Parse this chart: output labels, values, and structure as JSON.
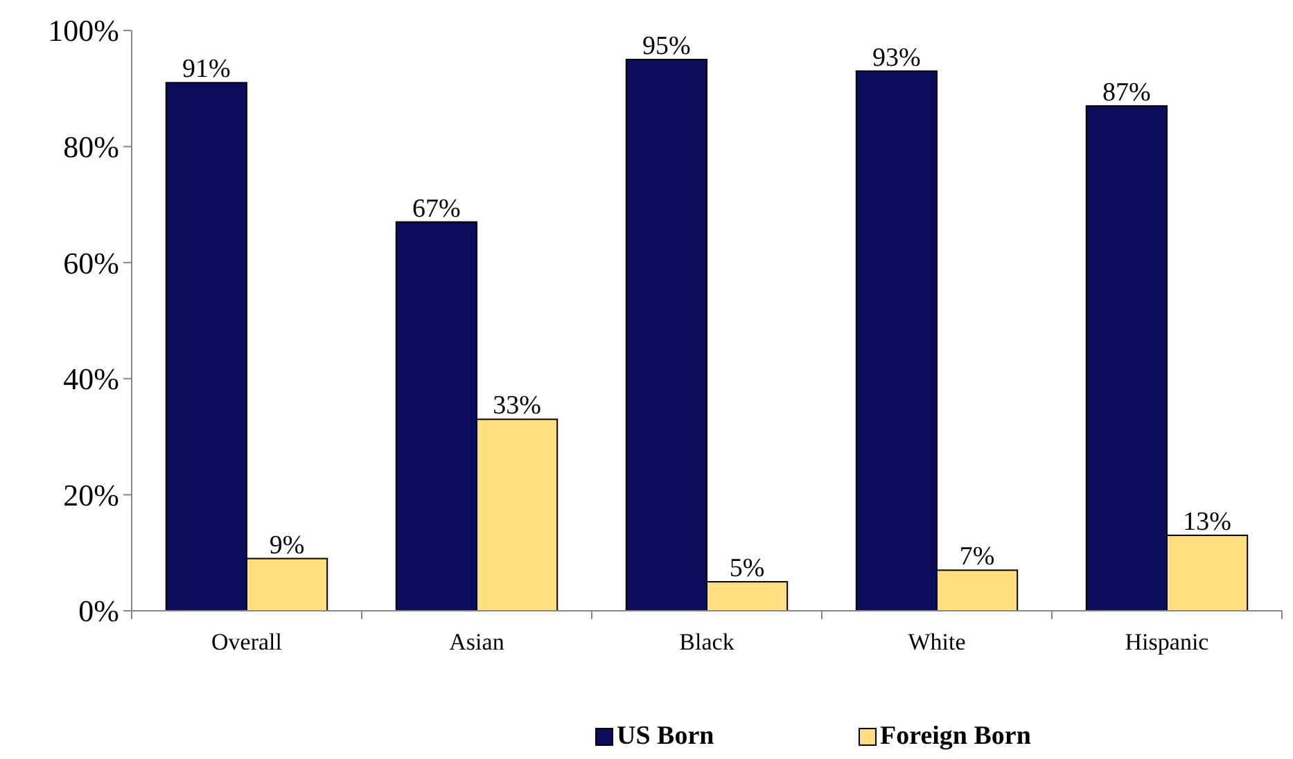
{
  "chart_data": {
    "type": "bar",
    "categories": [
      "Overall",
      "Asian",
      "Black",
      "White",
      "Hispanic"
    ],
    "series": [
      {
        "name": "US Born",
        "color": "#0c0c5c",
        "values": [
          91,
          67,
          95,
          93,
          87
        ],
        "value_labels": [
          "91%",
          "67%",
          "95%",
          "93%",
          "87%"
        ]
      },
      {
        "name": "Foreign Born",
        "color": "#ffdf80",
        "values": [
          9,
          33,
          5,
          7,
          13
        ],
        "value_labels": [
          "9%",
          "33%",
          "5%",
          "7%",
          "13%"
        ]
      }
    ],
    "ylim": [
      0,
      100
    ],
    "yticks": [
      {
        "value": 0,
        "label": "0%"
      },
      {
        "value": 20,
        "label": "20%"
      },
      {
        "value": 40,
        "label": "40%"
      },
      {
        "value": 60,
        "label": "60%"
      },
      {
        "value": 80,
        "label": "80%"
      },
      {
        "value": 100,
        "label": "100%"
      }
    ],
    "grid": false,
    "legend": "bottom"
  }
}
